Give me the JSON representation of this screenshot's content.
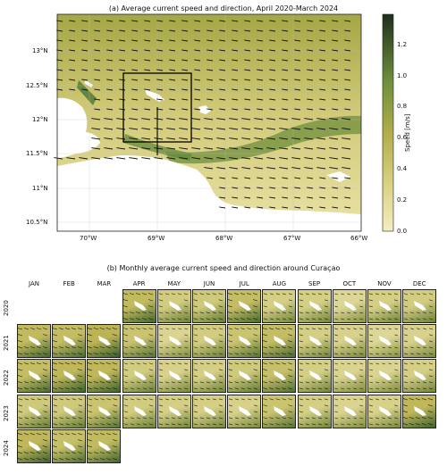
{
  "panel_a": {
    "title": "(a) Average current speed and direction, April 2020-March 2024",
    "lat_ticks": [
      "13°N",
      "12.5°N",
      "12°N",
      "11.5°N",
      "11°N",
      "10.5°N"
    ],
    "lon_ticks": [
      "70°W",
      "69°W",
      "68°W",
      "67°W",
      "66°W"
    ]
  },
  "colorbar": {
    "label": "Speed [m/s]",
    "ticks": [
      "1.2",
      "1.0",
      "0.8",
      "0.6",
      "0.4",
      "0.2",
      "0.0"
    ],
    "colors": {
      "low": "#f1ecbe",
      "mid": "#b9b14e",
      "high": "#1f3b1f"
    }
  },
  "panel_b": {
    "title": "(b) Monthly average current speed and direction around Curaçao",
    "months": [
      "JAN",
      "FEB",
      "MAR",
      "APR",
      "MAY",
      "JUN",
      "JUL",
      "AUG",
      "SEP",
      "OCT",
      "NOV",
      "DEC"
    ],
    "years": [
      "2020",
      "2021",
      "2022",
      "2023",
      "2024"
    ]
  },
  "chart_data": [
    {
      "type": "heatmap",
      "title": "(a) Average current speed and direction, April 2020-March 2024",
      "x_ticks": [
        "70°W",
        "69°W",
        "68°W",
        "67°W",
        "66°W"
      ],
      "xlim": [
        -70.5,
        -66
      ],
      "y_ticks": [
        "13°N",
        "12.5°N",
        "12°N",
        "11.5°N",
        "11°N",
        "10.5°N"
      ],
      "ylim": [
        10.35,
        13.5
      ],
      "colorbar": {
        "label": "Speed [m/s]",
        "range": [
          0,
          1.4
        ],
        "ticks": [
          0.0,
          0.2,
          0.4,
          0.6,
          0.8,
          1.0,
          1.2
        ]
      },
      "vector_direction": "westward to west-northwestward",
      "highlight_box": {
        "lon": [
          -69.5,
          -68.5
        ],
        "lat": [
          11.65,
          12.65
        ]
      }
    },
    {
      "type": "heatmap",
      "title": "(b) Monthly average current speed and direction around Curaçao",
      "months": [
        "JAN",
        "FEB",
        "MAR",
        "APR",
        "MAY",
        "JUN",
        "JUL",
        "AUG",
        "SEP",
        "OCT",
        "NOV",
        "DEC"
      ],
      "years": [
        "2020",
        "2021",
        "2022",
        "2023",
        "2024"
      ],
      "months_shown": {
        "2020": [
          "APR",
          "MAY",
          "JUN",
          "JUL",
          "AUG",
          "SEP",
          "OCT",
          "NOV",
          "DEC"
        ],
        "2021": [
          "JAN",
          "FEB",
          "MAR",
          "APR",
          "MAY",
          "JUN",
          "JUL",
          "AUG",
          "SEP",
          "OCT",
          "NOV",
          "DEC"
        ],
        "2022": [
          "JAN",
          "FEB",
          "MAR",
          "APR",
          "MAY",
          "JUN",
          "JUL",
          "AUG",
          "SEP",
          "OCT",
          "NOV",
          "DEC"
        ],
        "2023": [
          "JAN",
          "FEB",
          "MAR",
          "APR",
          "MAY",
          "JUN",
          "JUL",
          "AUG",
          "SEP",
          "OCT",
          "NOV",
          "DEC"
        ],
        "2024": [
          "JAN",
          "FEB",
          "MAR"
        ]
      },
      "relative_speed": {
        "2020": [
          null,
          null,
          null,
          0.85,
          0.55,
          0.6,
          0.8,
          0.5,
          0.5,
          0.35,
          0.5,
          0.55
        ],
        "2021": [
          0.85,
          0.8,
          0.95,
          0.7,
          0.4,
          0.55,
          0.7,
          0.8,
          0.5,
          0.45,
          0.35,
          0.45
        ],
        "2022": [
          0.8,
          0.9,
          0.9,
          0.55,
          0.45,
          0.5,
          0.6,
          0.75,
          0.5,
          0.4,
          0.4,
          0.5
        ],
        "2023": [
          0.6,
          0.6,
          0.7,
          0.55,
          0.5,
          0.5,
          0.45,
          0.7,
          0.5,
          0.4,
          0.45,
          0.9
        ],
        "2024": [
          0.9,
          0.75,
          0.85,
          null,
          null,
          null,
          null,
          null,
          null,
          null,
          null,
          null
        ]
      }
    }
  ]
}
